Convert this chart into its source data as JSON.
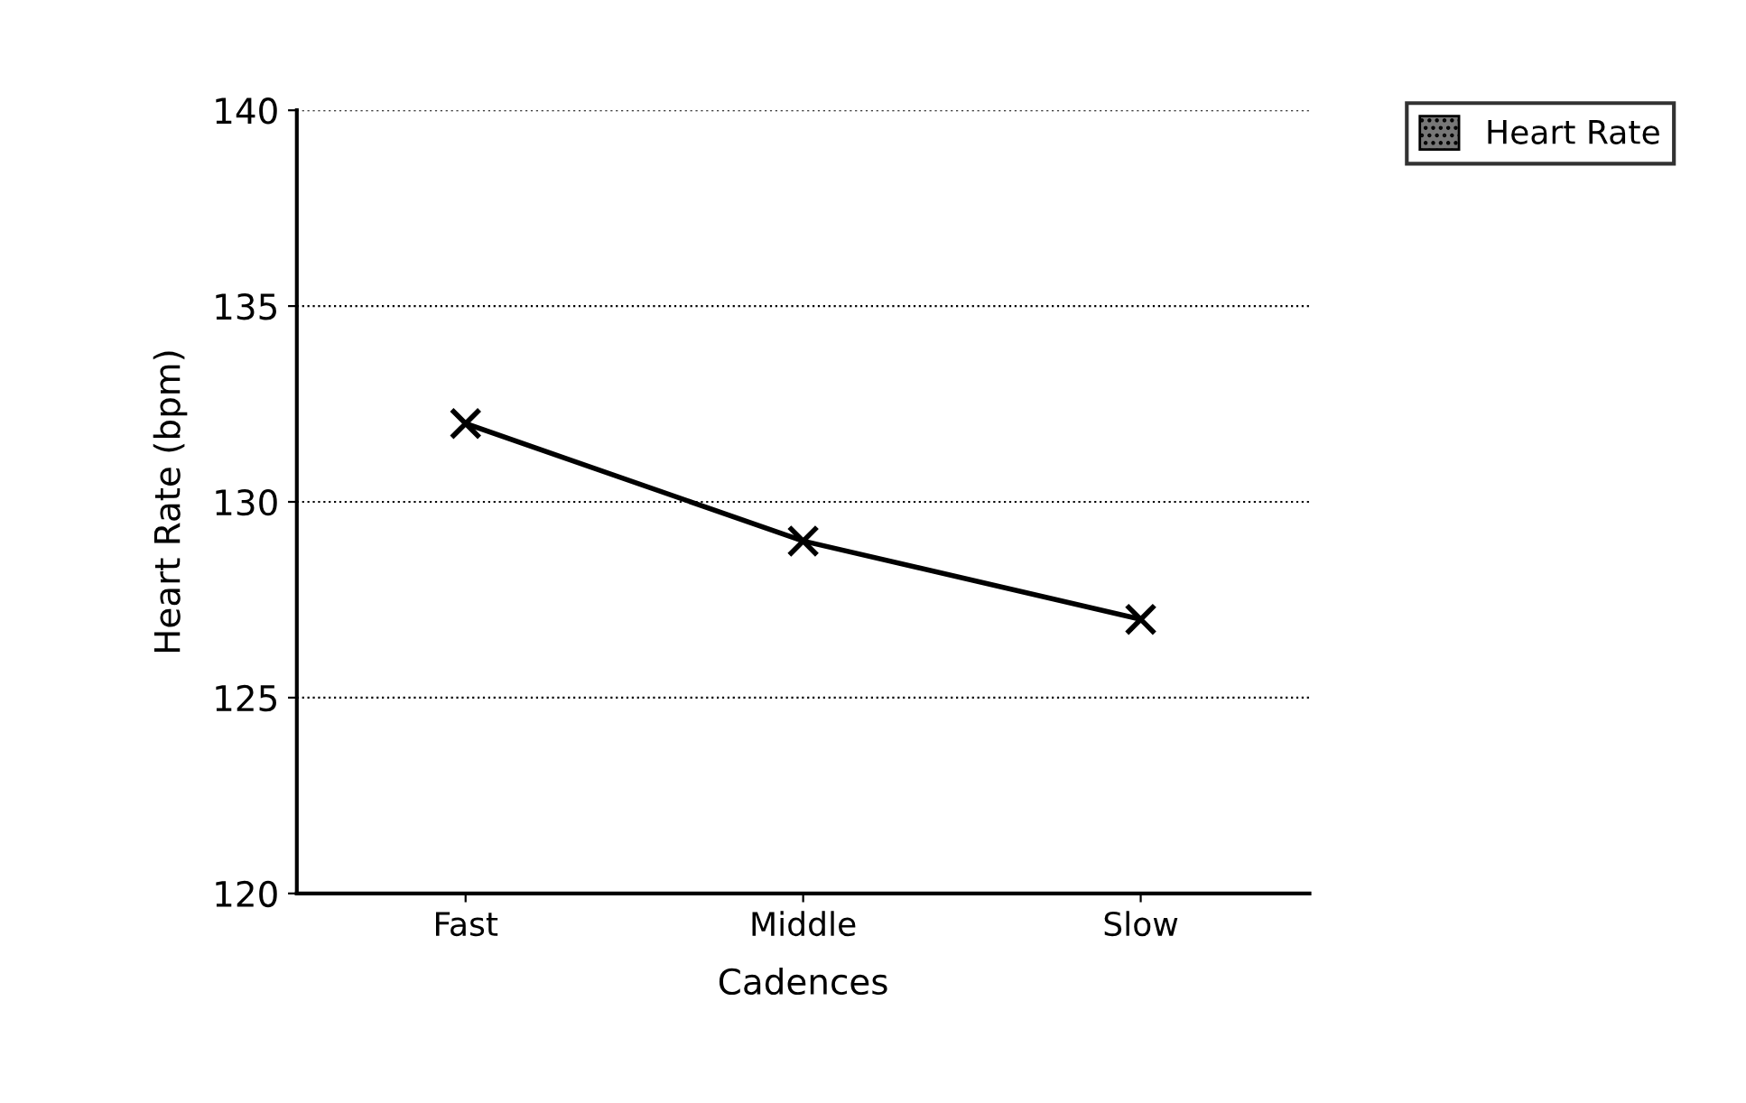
{
  "chart_data": {
    "type": "line",
    "xlabel": "Cadences",
    "ylabel": "Heart Rate (bpm)",
    "categories": [
      "Fast",
      "Middle",
      "Slow"
    ],
    "series": [
      {
        "name": "Heart Rate",
        "color": "#000000",
        "values": [
          132,
          129,
          127
        ]
      }
    ],
    "ylim": [
      120,
      140
    ],
    "yticks": [
      120,
      125,
      130,
      135,
      140
    ],
    "grid": "y",
    "legend": "top right",
    "marker": "cross",
    "line_style": "solid"
  }
}
